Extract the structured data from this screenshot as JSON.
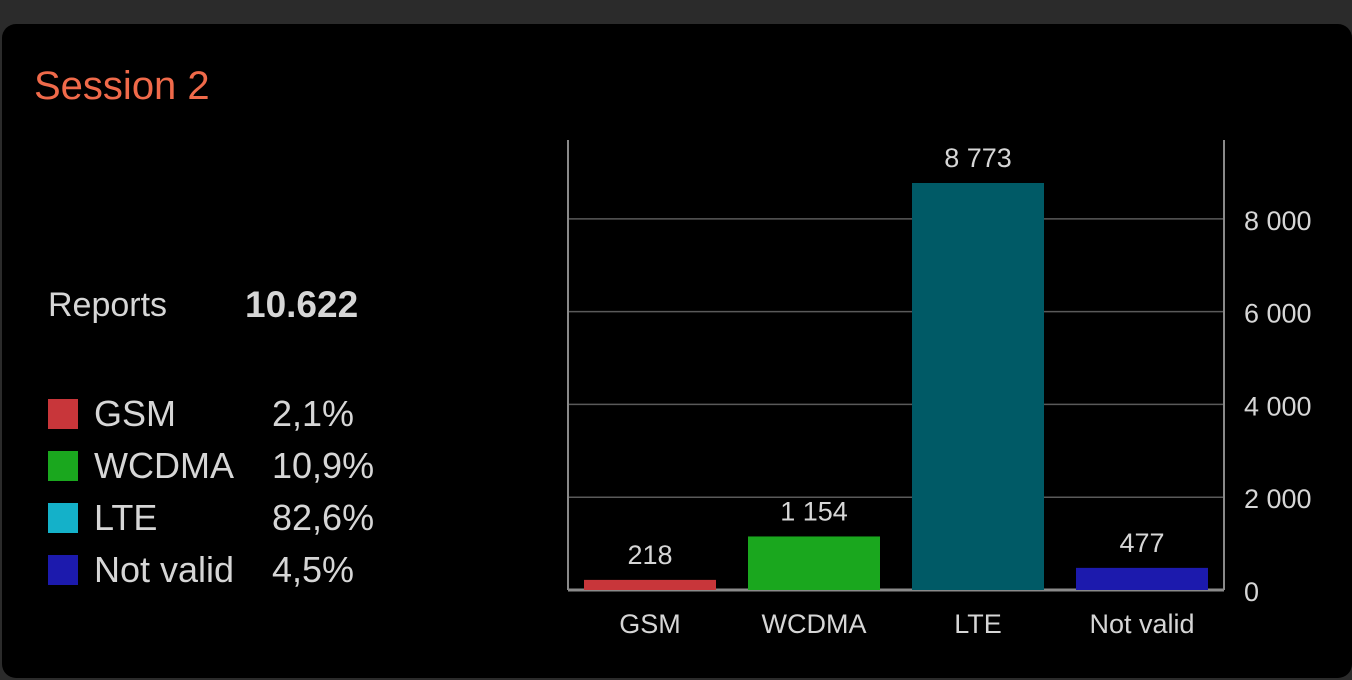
{
  "header": {
    "title": "Session 2"
  },
  "summary": {
    "label": "Reports",
    "value": "10.622"
  },
  "legend": [
    {
      "name": "GSM",
      "percent": "2,1%",
      "color": "#c8363a"
    },
    {
      "name": "WCDMA",
      "percent": "10,9%",
      "color": "#1aa71e"
    },
    {
      "name": "LTE",
      "percent": "82,6%",
      "color": "#14b1c9"
    },
    {
      "name": "Not valid",
      "percent": "4,5%",
      "color": "#1c1aad"
    }
  ],
  "chart_data": {
    "type": "bar",
    "categories": [
      "GSM",
      "WCDMA",
      "LTE",
      "Not valid"
    ],
    "values": [
      218,
      1154,
      8773,
      477
    ],
    "value_labels": [
      "218",
      "1 154",
      "8 773",
      "477"
    ],
    "colors": [
      "#c8363a",
      "#1aa71e",
      "#005a66",
      "#1c1aad"
    ],
    "yticks": [
      0,
      2000,
      4000,
      6000,
      8000
    ],
    "ytick_labels": [
      "0",
      "2 000",
      "4 000",
      "6 000",
      "8 000"
    ],
    "ylim": [
      0,
      9700
    ],
    "yaxis_position": "right",
    "grid": true
  }
}
